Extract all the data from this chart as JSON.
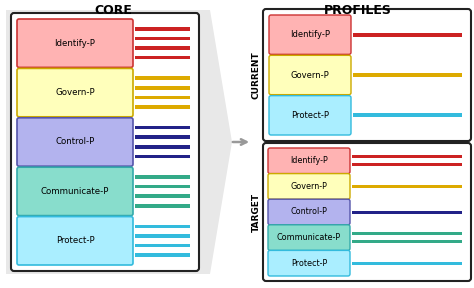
{
  "core_title": "CORE",
  "profiles_title": "PROFILES",
  "current_label": "CURRENT",
  "target_label": "TARGET",
  "items": [
    {
      "label": "Identify-P",
      "fill": "#ffb3b3",
      "edge": "#cc3333",
      "bar_color": "#cc2222"
    },
    {
      "label": "Govern-P",
      "fill": "#ffffbb",
      "edge": "#ccaa00",
      "bar_color": "#ddaa00"
    },
    {
      "label": "Control-P",
      "fill": "#b3b3ee",
      "edge": "#5555aa",
      "bar_color": "#222288"
    },
    {
      "label": "Communicate-P",
      "fill": "#88ddcc",
      "edge": "#33aaaa",
      "bar_color": "#33aa88"
    },
    {
      "label": "Protect-P",
      "fill": "#aaeeff",
      "edge": "#33bbdd",
      "bar_color": "#33bbdd"
    }
  ],
  "current_items_idx": [
    0,
    1,
    4
  ],
  "target_items_idx": [
    0,
    1,
    2,
    3,
    4
  ],
  "current_bars": {
    "0": 1,
    "1": 1,
    "4": 1
  },
  "target_bars": {
    "0": 2,
    "1": 1,
    "2": 1,
    "3": 2,
    "4": 1
  },
  "core_bars": {
    "0": 4,
    "1": 4,
    "2": 4,
    "3": 4,
    "4": 4
  }
}
